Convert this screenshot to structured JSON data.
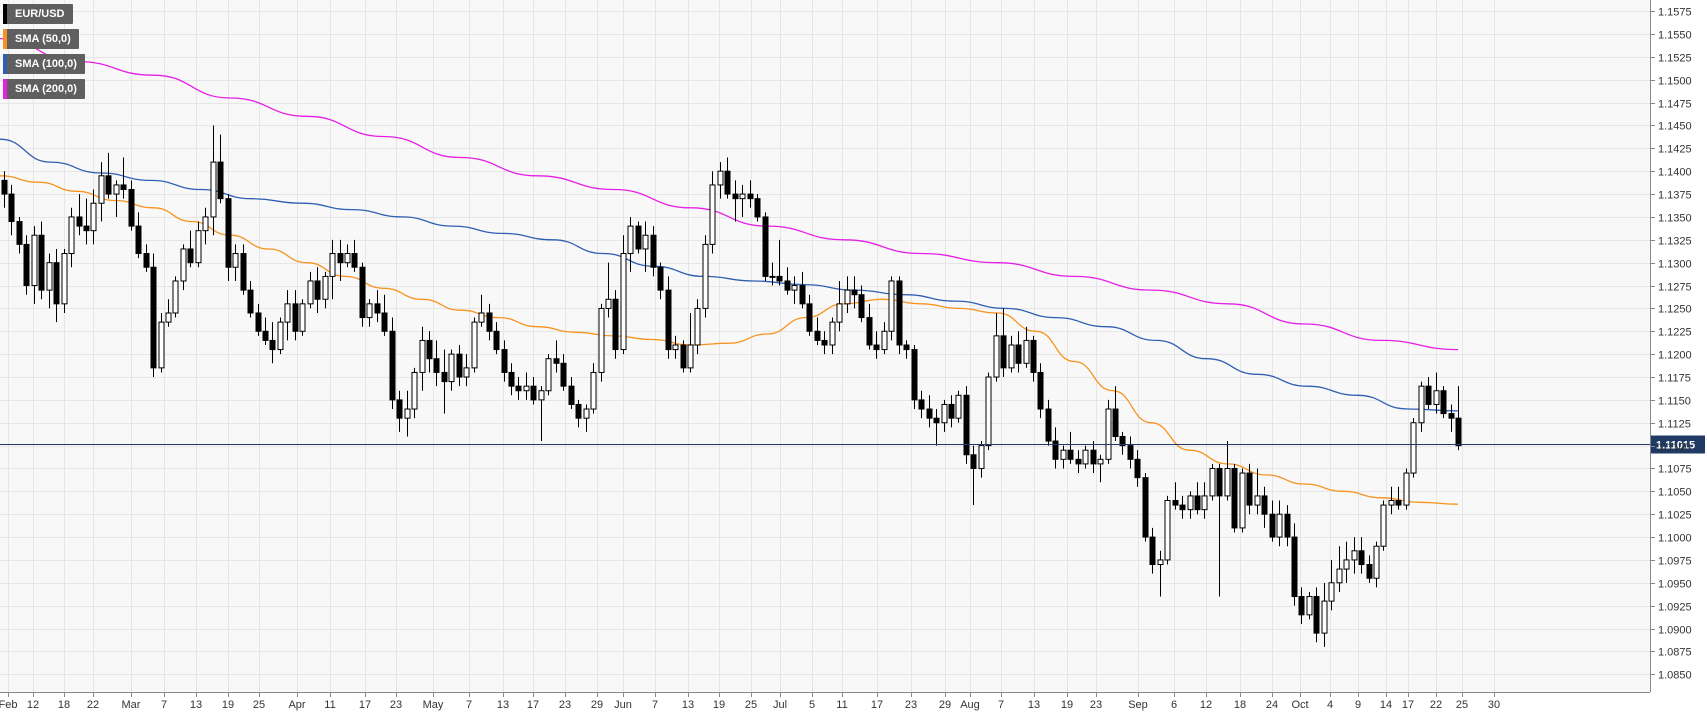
{
  "chart_data": {
    "type": "candlestick",
    "instrument": "EUR/USD",
    "timeframe": "daily",
    "y_range": [
      1.0835,
      1.1585
    ],
    "y_ticks": [
      "1.1575",
      "1.1550",
      "1.1525",
      "1.1500",
      "1.1475",
      "1.1450",
      "1.1425",
      "1.1400",
      "1.1375",
      "1.1350",
      "1.1325",
      "1.1300",
      "1.1275",
      "1.1250",
      "1.1225",
      "1.1200",
      "1.1175",
      "1.1150",
      "1.1125",
      "1.1100",
      "1.1075",
      "1.1050",
      "1.1025",
      "1.1000",
      "1.0975",
      "1.0950",
      "1.0925",
      "1.0900",
      "1.0875",
      "1.0850"
    ],
    "x_labels": [
      "Feb",
      "12",
      "18",
      "22",
      "Mar",
      "7",
      "13",
      "19",
      "25",
      "Apr",
      "11",
      "17",
      "23",
      "May",
      "7",
      "13",
      "17",
      "23",
      "29",
      "Jun",
      "7",
      "13",
      "19",
      "25",
      "Jul",
      "5",
      "11",
      "17",
      "23",
      "29",
      "Aug",
      "7",
      "13",
      "19",
      "23",
      "Sep",
      "6",
      "12",
      "18",
      "24",
      "Oct",
      "4",
      "9",
      "14",
      "17",
      "22",
      "25",
      "30"
    ],
    "last_price": "1.11015",
    "grid": true,
    "legend_placement": "top-left",
    "legend": [
      {
        "label": "EUR/USD",
        "color": "#000000"
      },
      {
        "label": "SMA (50,0)",
        "color": "#f7931e"
      },
      {
        "label": "SMA (100,0)",
        "color": "#2f5fb3"
      },
      {
        "label": "SMA (200,0)",
        "color": "#e61ee6"
      }
    ],
    "colors": {
      "up": "#ffffff",
      "down": "#000000",
      "grid": "#e6e6e6",
      "background": "#f8f8f8",
      "price_line": "#1f3a64",
      "price_tag": "#1f3a64"
    },
    "candles": [
      [
        1.139,
        1.14,
        1.136,
        1.1375
      ],
      [
        1.1375,
        1.1385,
        1.133,
        1.1345
      ],
      [
        1.1345,
        1.135,
        1.131,
        1.132
      ],
      [
        1.132,
        1.133,
        1.1265,
        1.1275
      ],
      [
        1.1275,
        1.134,
        1.1255,
        1.133
      ],
      [
        1.133,
        1.1345,
        1.126,
        1.127
      ],
      [
        1.127,
        1.131,
        1.125,
        1.13
      ],
      [
        1.13,
        1.1315,
        1.1235,
        1.1255
      ],
      [
        1.1255,
        1.1315,
        1.1245,
        1.131
      ],
      [
        1.131,
        1.136,
        1.1295,
        1.135
      ],
      [
        1.135,
        1.1375,
        1.133,
        1.134
      ],
      [
        1.134,
        1.137,
        1.132,
        1.1335
      ],
      [
        1.1335,
        1.138,
        1.132,
        1.1365
      ],
      [
        1.1365,
        1.141,
        1.1345,
        1.1395
      ],
      [
        1.1395,
        1.142,
        1.137,
        1.1375
      ],
      [
        1.1375,
        1.139,
        1.135,
        1.1385
      ],
      [
        1.1385,
        1.1415,
        1.137,
        1.138
      ],
      [
        1.138,
        1.139,
        1.1335,
        1.134
      ],
      [
        1.134,
        1.1355,
        1.1305,
        1.131
      ],
      [
        1.131,
        1.132,
        1.129,
        1.1295
      ],
      [
        1.1295,
        1.131,
        1.1175,
        1.1185
      ],
      [
        1.1185,
        1.1245,
        1.118,
        1.1235
      ],
      [
        1.1235,
        1.126,
        1.123,
        1.1245
      ],
      [
        1.1245,
        1.1285,
        1.124,
        1.128
      ],
      [
        1.128,
        1.132,
        1.127,
        1.1315
      ],
      [
        1.1315,
        1.1335,
        1.1295,
        1.13
      ],
      [
        1.13,
        1.1345,
        1.1295,
        1.1335
      ],
      [
        1.1335,
        1.136,
        1.132,
        1.135
      ],
      [
        1.135,
        1.145,
        1.133,
        1.141
      ],
      [
        1.141,
        1.144,
        1.1365,
        1.137
      ],
      [
        1.137,
        1.1375,
        1.128,
        1.1295
      ],
      [
        1.1295,
        1.132,
        1.128,
        1.131
      ],
      [
        1.131,
        1.132,
        1.1265,
        1.127
      ],
      [
        1.127,
        1.128,
        1.124,
        1.1245
      ],
      [
        1.1245,
        1.1255,
        1.122,
        1.1225
      ],
      [
        1.1225,
        1.124,
        1.121,
        1.1215
      ],
      [
        1.1215,
        1.1235,
        1.119,
        1.1205
      ],
      [
        1.1205,
        1.124,
        1.12,
        1.1235
      ],
      [
        1.1235,
        1.127,
        1.1215,
        1.1255
      ],
      [
        1.1255,
        1.127,
        1.1215,
        1.1225
      ],
      [
        1.1225,
        1.126,
        1.122,
        1.1255
      ],
      [
        1.1255,
        1.129,
        1.125,
        1.128
      ],
      [
        1.128,
        1.1295,
        1.1245,
        1.126
      ],
      [
        1.126,
        1.129,
        1.125,
        1.1285
      ],
      [
        1.1285,
        1.1325,
        1.126,
        1.131
      ],
      [
        1.131,
        1.1325,
        1.128,
        1.13
      ],
      [
        1.13,
        1.132,
        1.1295,
        1.131
      ],
      [
        1.131,
        1.1325,
        1.129,
        1.1295
      ],
      [
        1.1295,
        1.13,
        1.123,
        1.124
      ],
      [
        1.124,
        1.126,
        1.123,
        1.1255
      ],
      [
        1.1255,
        1.127,
        1.1235,
        1.1245
      ],
      [
        1.1245,
        1.1265,
        1.122,
        1.1225
      ],
      [
        1.1225,
        1.124,
        1.114,
        1.115
      ],
      [
        1.115,
        1.116,
        1.1115,
        1.113
      ],
      [
        1.113,
        1.116,
        1.111,
        1.114
      ],
      [
        1.114,
        1.1185,
        1.113,
        1.118
      ],
      [
        1.118,
        1.123,
        1.116,
        1.1215
      ],
      [
        1.1215,
        1.1225,
        1.118,
        1.1195
      ],
      [
        1.1195,
        1.1215,
        1.1165,
        1.118
      ],
      [
        1.118,
        1.1205,
        1.1135,
        1.117
      ],
      [
        1.117,
        1.1205,
        1.116,
        1.12
      ],
      [
        1.12,
        1.121,
        1.1165,
        1.1175
      ],
      [
        1.1175,
        1.12,
        1.1165,
        1.1185
      ],
      [
        1.1185,
        1.124,
        1.118,
        1.1235
      ],
      [
        1.1235,
        1.1265,
        1.123,
        1.1245
      ],
      [
        1.1245,
        1.1255,
        1.1215,
        1.1225
      ],
      [
        1.1225,
        1.1235,
        1.12,
        1.1205
      ],
      [
        1.1205,
        1.1215,
        1.117,
        1.118
      ],
      [
        1.118,
        1.119,
        1.1155,
        1.1165
      ],
      [
        1.1165,
        1.1175,
        1.115,
        1.116
      ],
      [
        1.116,
        1.118,
        1.115,
        1.1165
      ],
      [
        1.1165,
        1.1175,
        1.1145,
        1.115
      ],
      [
        1.115,
        1.1165,
        1.1105,
        1.116
      ],
      [
        1.116,
        1.12,
        1.1155,
        1.1195
      ],
      [
        1.1195,
        1.1215,
        1.118,
        1.119
      ],
      [
        1.119,
        1.12,
        1.116,
        1.1165
      ],
      [
        1.1165,
        1.1175,
        1.114,
        1.1145
      ],
      [
        1.1145,
        1.115,
        1.112,
        1.113
      ],
      [
        1.113,
        1.1145,
        1.1115,
        1.114
      ],
      [
        1.114,
        1.119,
        1.1135,
        1.118
      ],
      [
        1.118,
        1.1255,
        1.117,
        1.125
      ],
      [
        1.125,
        1.13,
        1.124,
        1.126
      ],
      [
        1.126,
        1.127,
        1.1195,
        1.1205
      ],
      [
        1.1205,
        1.133,
        1.12,
        1.131
      ],
      [
        1.131,
        1.135,
        1.129,
        1.134
      ],
      [
        1.134,
        1.1345,
        1.131,
        1.1315
      ],
      [
        1.1315,
        1.1345,
        1.129,
        1.133
      ],
      [
        1.133,
        1.134,
        1.1285,
        1.1295
      ],
      [
        1.1295,
        1.13,
        1.126,
        1.127
      ],
      [
        1.127,
        1.1285,
        1.1195,
        1.1205
      ],
      [
        1.1205,
        1.122,
        1.1195,
        1.121
      ],
      [
        1.121,
        1.1215,
        1.118,
        1.1185
      ],
      [
        1.1185,
        1.1245,
        1.118,
        1.121
      ],
      [
        1.121,
        1.126,
        1.12,
        1.125
      ],
      [
        1.125,
        1.133,
        1.124,
        1.132
      ],
      [
        1.132,
        1.14,
        1.131,
        1.1385
      ],
      [
        1.1385,
        1.141,
        1.137,
        1.14
      ],
      [
        1.14,
        1.1415,
        1.137,
        1.1375
      ],
      [
        1.1375,
        1.139,
        1.1345,
        1.137
      ],
      [
        1.137,
        1.1385,
        1.135,
        1.1375
      ],
      [
        1.1375,
        1.139,
        1.136,
        1.137
      ],
      [
        1.137,
        1.1375,
        1.1345,
        1.135
      ],
      [
        1.135,
        1.1355,
        1.128,
        1.1285
      ],
      [
        1.1285,
        1.13,
        1.1275,
        1.1285
      ],
      [
        1.1285,
        1.1325,
        1.1275,
        1.128
      ],
      [
        1.128,
        1.1295,
        1.1265,
        1.127
      ],
      [
        1.127,
        1.1285,
        1.1255,
        1.1275
      ],
      [
        1.1275,
        1.129,
        1.125,
        1.1255
      ],
      [
        1.1255,
        1.1265,
        1.122,
        1.1225
      ],
      [
        1.1225,
        1.124,
        1.121,
        1.1215
      ],
      [
        1.1215,
        1.1225,
        1.12,
        1.121
      ],
      [
        1.121,
        1.124,
        1.12,
        1.1235
      ],
      [
        1.1235,
        1.128,
        1.1225,
        1.1255
      ],
      [
        1.1255,
        1.1285,
        1.1245,
        1.127
      ],
      [
        1.127,
        1.1285,
        1.125,
        1.1265
      ],
      [
        1.1265,
        1.1275,
        1.1235,
        1.124
      ],
      [
        1.124,
        1.1255,
        1.1205,
        1.121
      ],
      [
        1.121,
        1.1225,
        1.1195,
        1.1205
      ],
      [
        1.1205,
        1.1235,
        1.12,
        1.1225
      ],
      [
        1.1225,
        1.1285,
        1.1215,
        1.128
      ],
      [
        1.128,
        1.1285,
        1.12,
        1.121
      ],
      [
        1.121,
        1.1215,
        1.1195,
        1.1205
      ],
      [
        1.1205,
        1.121,
        1.114,
        1.115
      ],
      [
        1.115,
        1.116,
        1.113,
        1.114
      ],
      [
        1.114,
        1.1155,
        1.112,
        1.113
      ],
      [
        1.113,
        1.114,
        1.11,
        1.1125
      ],
      [
        1.1125,
        1.115,
        1.1115,
        1.1145
      ],
      [
        1.1145,
        1.1155,
        1.112,
        1.113
      ],
      [
        1.113,
        1.116,
        1.1125,
        1.1155
      ],
      [
        1.1155,
        1.1165,
        1.108,
        1.109
      ],
      [
        1.109,
        1.11,
        1.1035,
        1.1075
      ],
      [
        1.1075,
        1.1105,
        1.1065,
        1.11
      ],
      [
        1.11,
        1.118,
        1.1095,
        1.1175
      ],
      [
        1.1175,
        1.1245,
        1.117,
        1.122
      ],
      [
        1.122,
        1.125,
        1.1175,
        1.1185
      ],
      [
        1.1185,
        1.122,
        1.118,
        1.121
      ],
      [
        1.121,
        1.1225,
        1.118,
        1.119
      ],
      [
        1.119,
        1.123,
        1.1185,
        1.1215
      ],
      [
        1.1215,
        1.122,
        1.117,
        1.118
      ],
      [
        1.118,
        1.119,
        1.113,
        1.114
      ],
      [
        1.114,
        1.115,
        1.11,
        1.1105
      ],
      [
        1.1105,
        1.112,
        1.1075,
        1.1085
      ],
      [
        1.1085,
        1.11,
        1.1075,
        1.1095
      ],
      [
        1.1095,
        1.1115,
        1.108,
        1.1085
      ],
      [
        1.1085,
        1.1095,
        1.107,
        1.108
      ],
      [
        1.108,
        1.11,
        1.1075,
        1.1095
      ],
      [
        1.1095,
        1.1105,
        1.107,
        1.108
      ],
      [
        1.108,
        1.109,
        1.106,
        1.1085
      ],
      [
        1.1085,
        1.115,
        1.108,
        1.114
      ],
      [
        1.114,
        1.1165,
        1.1105,
        1.111
      ],
      [
        1.111,
        1.1115,
        1.109,
        1.11
      ],
      [
        1.11,
        1.111,
        1.1075,
        1.1085
      ],
      [
        1.1085,
        1.1095,
        1.1055,
        1.1065
      ],
      [
        1.1065,
        1.107,
        1.0995,
        1.1
      ],
      [
        1.1,
        1.101,
        1.096,
        1.097
      ],
      [
        1.097,
        1.0985,
        1.0935,
        1.0975
      ],
      [
        1.0975,
        1.1045,
        1.097,
        1.104
      ],
      [
        1.104,
        1.106,
        1.103,
        1.1035
      ],
      [
        1.1035,
        1.1045,
        1.102,
        1.103
      ],
      [
        1.103,
        1.105,
        1.102,
        1.1045
      ],
      [
        1.1045,
        1.106,
        1.1025,
        1.103
      ],
      [
        1.103,
        1.106,
        1.102,
        1.1045
      ],
      [
        1.1045,
        1.108,
        1.104,
        1.1075
      ],
      [
        1.1075,
        1.108,
        1.0935,
        1.1045
      ],
      [
        1.1045,
        1.1105,
        1.104,
        1.1075
      ],
      [
        1.1075,
        1.108,
        1.1005,
        1.101
      ],
      [
        1.101,
        1.1075,
        1.1005,
        1.107
      ],
      [
        1.107,
        1.108,
        1.1025,
        1.1035
      ],
      [
        1.1035,
        1.1075,
        1.1025,
        1.1045
      ],
      [
        1.1045,
        1.1055,
        1.101,
        1.1025
      ],
      [
        1.1025,
        1.104,
        1.0995,
        1.1
      ],
      [
        1.1,
        1.104,
        1.099,
        1.1025
      ],
      [
        1.1025,
        1.1035,
        1.099,
        1.1
      ],
      [
        1.1,
        1.1015,
        1.0925,
        1.0935
      ],
      [
        1.0935,
        1.0945,
        1.0905,
        1.0915
      ],
      [
        1.0915,
        1.094,
        1.091,
        1.0935
      ],
      [
        1.0935,
        1.0945,
        1.0885,
        1.0895
      ],
      [
        1.0895,
        1.095,
        1.088,
        1.093
      ],
      [
        1.093,
        1.0975,
        1.092,
        1.095
      ],
      [
        1.095,
        1.099,
        1.094,
        1.0965
      ],
      [
        1.0965,
        1.0995,
        1.095,
        1.0975
      ],
      [
        1.0975,
        1.1,
        1.096,
        1.0985
      ],
      [
        1.0985,
        1.1,
        1.096,
        1.097
      ],
      [
        1.097,
        1.098,
        1.095,
        1.0955
      ],
      [
        1.0955,
        1.0995,
        1.0945,
        1.099
      ],
      [
        1.099,
        1.104,
        1.0985,
        1.1035
      ],
      [
        1.1035,
        1.1055,
        1.1025,
        1.104
      ],
      [
        1.104,
        1.1055,
        1.103,
        1.1035
      ],
      [
        1.1035,
        1.1075,
        1.103,
        1.107
      ],
      [
        1.107,
        1.113,
        1.1065,
        1.1125
      ],
      [
        1.1125,
        1.117,
        1.1115,
        1.1165
      ],
      [
        1.1165,
        1.1175,
        1.114,
        1.1145
      ],
      [
        1.1145,
        1.118,
        1.1135,
        1.116
      ],
      [
        1.116,
        1.1165,
        1.113,
        1.1135
      ],
      [
        1.1135,
        1.1145,
        1.1115,
        1.113
      ],
      [
        1.113,
        1.1165,
        1.1095,
        1.11
      ]
    ],
    "sma50": [
      1.1395,
      1.1388,
      1.1378,
      1.1368,
      1.136,
      1.1345,
      1.133,
      1.1315,
      1.13,
      1.1285,
      1.1272,
      1.126,
      1.1248,
      1.124,
      1.123,
      1.1224,
      1.122,
      1.1216,
      1.121,
      1.1212,
      1.1222,
      1.124,
      1.1255,
      1.126,
      1.1255,
      1.125,
      1.1245,
      1.1225,
      1.1192,
      1.116,
      1.1125,
      1.1095,
      1.108,
      1.1068,
      1.1058,
      1.105,
      1.1043,
      1.1038,
      1.1036
    ],
    "sma100": [
      1.1435,
      1.141,
      1.1398,
      1.139,
      1.138,
      1.137,
      1.1365,
      1.1358,
      1.135,
      1.134,
      1.1332,
      1.1325,
      1.131,
      1.1296,
      1.1285,
      1.128,
      1.1276,
      1.127,
      1.1265,
      1.1258,
      1.125,
      1.124,
      1.123,
      1.1215,
      1.1195,
      1.1178,
      1.1165,
      1.1155,
      1.114,
      1.1138
    ],
    "sma200": [
      1.1545,
      1.152,
      1.1505,
      1.148,
      1.146,
      1.1438,
      1.1415,
      1.1395,
      1.138,
      1.136,
      1.134,
      1.1325,
      1.131,
      1.13,
      1.1285,
      1.127,
      1.1255,
      1.1233,
      1.1215,
      1.1205
    ]
  }
}
